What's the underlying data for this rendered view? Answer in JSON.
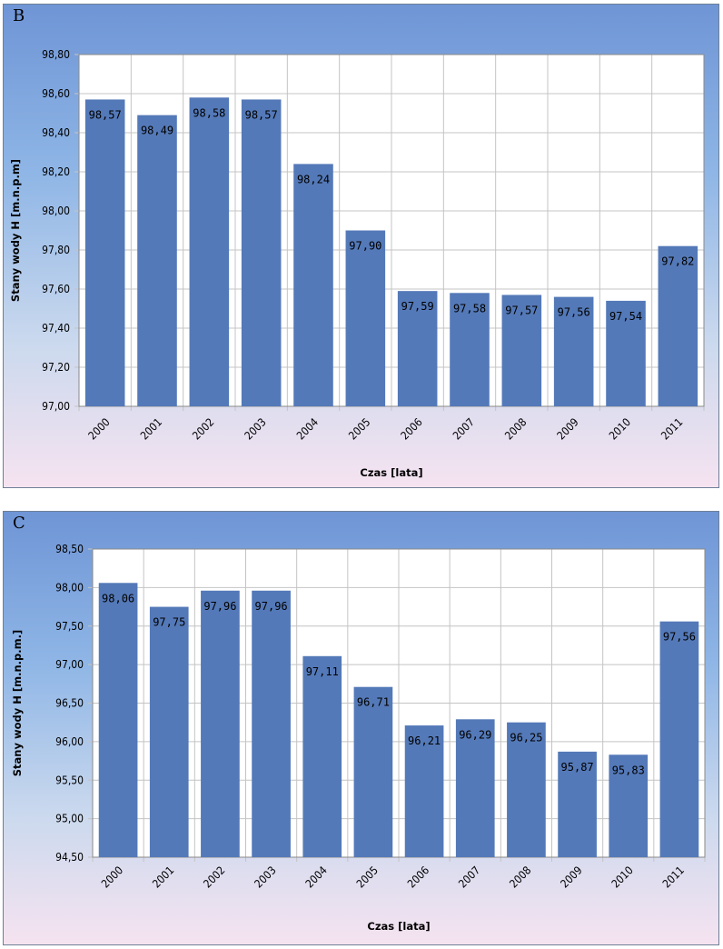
{
  "chart_data": [
    {
      "panel": "B",
      "type": "bar",
      "categories": [
        "2000",
        "2001",
        "2002",
        "2003",
        "2004",
        "2005",
        "2006",
        "2007",
        "2008",
        "2009",
        "2010",
        "2011"
      ],
      "values": [
        98.57,
        98.49,
        98.58,
        98.57,
        98.24,
        97.9,
        97.59,
        97.58,
        97.57,
        97.56,
        97.54,
        97.82
      ],
      "data_labels": [
        "98,57",
        "98,49",
        "98,58",
        "98,57",
        "98,24",
        "97,90",
        "97,59",
        "97,58",
        "97,57",
        "97,56",
        "97,54",
        "97,82"
      ],
      "yticks": [
        97.0,
        97.2,
        97.4,
        97.6,
        97.8,
        98.0,
        98.2,
        98.4,
        98.6,
        98.8
      ],
      "ytick_labels": [
        "97,00",
        "97,20",
        "97,40",
        "97,60",
        "97,80",
        "98,00",
        "98,20",
        "98,40",
        "98,60",
        "98,80"
      ],
      "ylim": [
        97.0,
        98.8
      ],
      "xlabel": "Czas [lata]",
      "ylabel": "Stany wody H [m.n.p.m]",
      "grid": true,
      "bar_color": "#5479b8"
    },
    {
      "panel": "C",
      "type": "bar",
      "categories": [
        "2000",
        "2001",
        "2002",
        "2003",
        "2004",
        "2005",
        "2006",
        "2007",
        "2008",
        "2009",
        "2010",
        "2011"
      ],
      "values": [
        98.06,
        97.75,
        97.96,
        97.96,
        97.11,
        96.71,
        96.21,
        96.29,
        96.25,
        95.87,
        95.83,
        97.56
      ],
      "data_labels": [
        "98,06",
        "97,75",
        "97,96",
        "97,96",
        "97,11",
        "96,71",
        "96,21",
        "96,29",
        "96,25",
        "95,87",
        "95,83",
        "97,56"
      ],
      "yticks": [
        94.5,
        95.0,
        95.5,
        96.0,
        96.5,
        97.0,
        97.5,
        98.0,
        98.5
      ],
      "ytick_labels": [
        "94,50",
        "95,00",
        "95,50",
        "96,00",
        "96,50",
        "97,00",
        "97,50",
        "98,00",
        "98,50"
      ],
      "ylim": [
        94.5,
        98.5
      ],
      "xlabel": "Czas [lata]",
      "ylabel": "Stany wody H [m.n.p.m.]",
      "grid": true,
      "bar_color": "#5479b8"
    }
  ]
}
